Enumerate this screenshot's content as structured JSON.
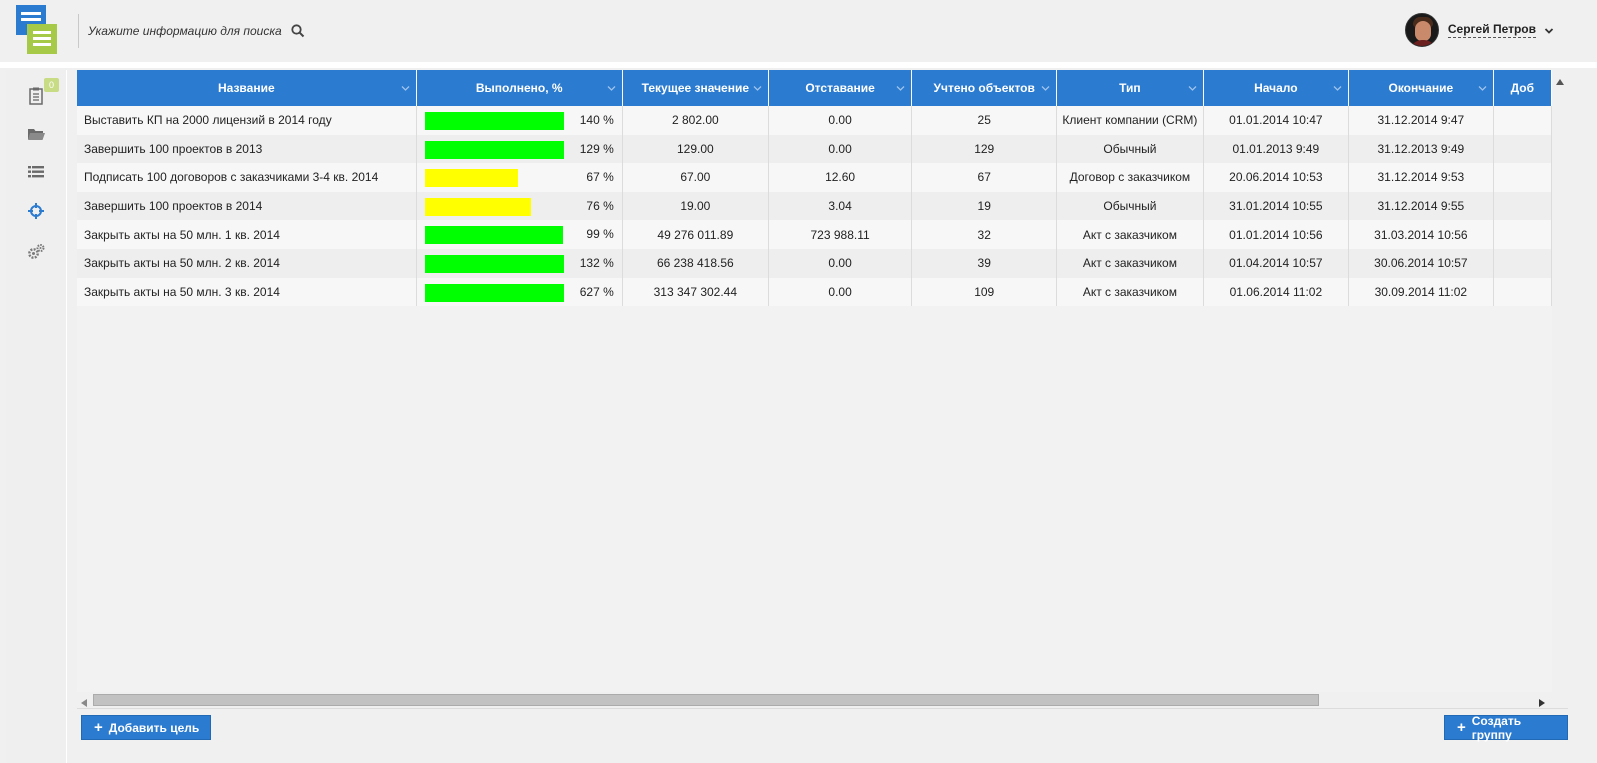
{
  "header": {
    "search_placeholder": "Укажите информацию для поиска",
    "user_name": "Сергей Петров"
  },
  "sidebar": {
    "badge": "0",
    "items": [
      "tasks-icon",
      "folder-icon",
      "list-icon",
      "target-icon",
      "gears-icon"
    ]
  },
  "table": {
    "columns": [
      "Название",
      "Выполнено, %",
      "Текущее значение",
      "Отставание",
      "Учтено объектов",
      "Тип",
      "Начало",
      "Окончание",
      "Доб"
    ],
    "rows": [
      {
        "name": "Выставить КП на 2000 лицензий в 2014 году",
        "percent": "140 %",
        "fill": 1.0,
        "color": "#00ff00",
        "current": "2 802.00",
        "lag": "0.00",
        "count": "25",
        "type": "Клиент компании (CRM)",
        "start": "01.01.2014 10:47",
        "end": "31.12.2014 9:47"
      },
      {
        "name": "Завершить 100 проектов в 2013",
        "percent": "129 %",
        "fill": 1.0,
        "color": "#00ff00",
        "current": "129.00",
        "lag": "0.00",
        "count": "129",
        "type": "Обычный",
        "start": "01.01.2013 9:49",
        "end": "31.12.2013 9:49"
      },
      {
        "name": "Подписать 100 договоров с заказчиками 3-4 кв. 2014",
        "percent": "67 %",
        "fill": 0.67,
        "color": "#ffff00",
        "current": "67.00",
        "lag": "12.60",
        "count": "67",
        "type": "Договор с заказчиком",
        "start": "20.06.2014 10:53",
        "end": "31.12.2014 9:53"
      },
      {
        "name": "Завершить 100 проектов в 2014",
        "percent": "76 %",
        "fill": 0.76,
        "color": "#ffff00",
        "current": "19.00",
        "lag": "3.04",
        "count": "19",
        "type": "Обычный",
        "start": "31.01.2014 10:55",
        "end": "31.12.2014 9:55"
      },
      {
        "name": "Закрыть акты на 50 млн. 1 кв. 2014",
        "percent": "99 %",
        "fill": 0.99,
        "color": "#00ff00",
        "current": "49 276 011.89",
        "lag": "723 988.11",
        "count": "32",
        "type": "Акт с заказчиком",
        "start": "01.01.2014 10:56",
        "end": "31.03.2014 10:56"
      },
      {
        "name": "Закрыть акты на 50 млн. 2 кв. 2014",
        "percent": "132 %",
        "fill": 1.0,
        "color": "#00ff00",
        "current": "66 238 418.56",
        "lag": "0.00",
        "count": "39",
        "type": "Акт с заказчиком",
        "start": "01.04.2014 10:57",
        "end": "30.06.2014 10:57"
      },
      {
        "name": "Закрыть акты на 50 млн. 3 кв. 2014",
        "percent": "627 %",
        "fill": 1.0,
        "color": "#00ff00",
        "current": "313 347 302.44",
        "lag": "0.00",
        "count": "109",
        "type": "Акт с заказчиком",
        "start": "01.06.2014 11:02",
        "end": "30.09.2014 11:02"
      }
    ]
  },
  "footer": {
    "add_goal": "Добавить цель",
    "create_group": "Создать группу"
  }
}
